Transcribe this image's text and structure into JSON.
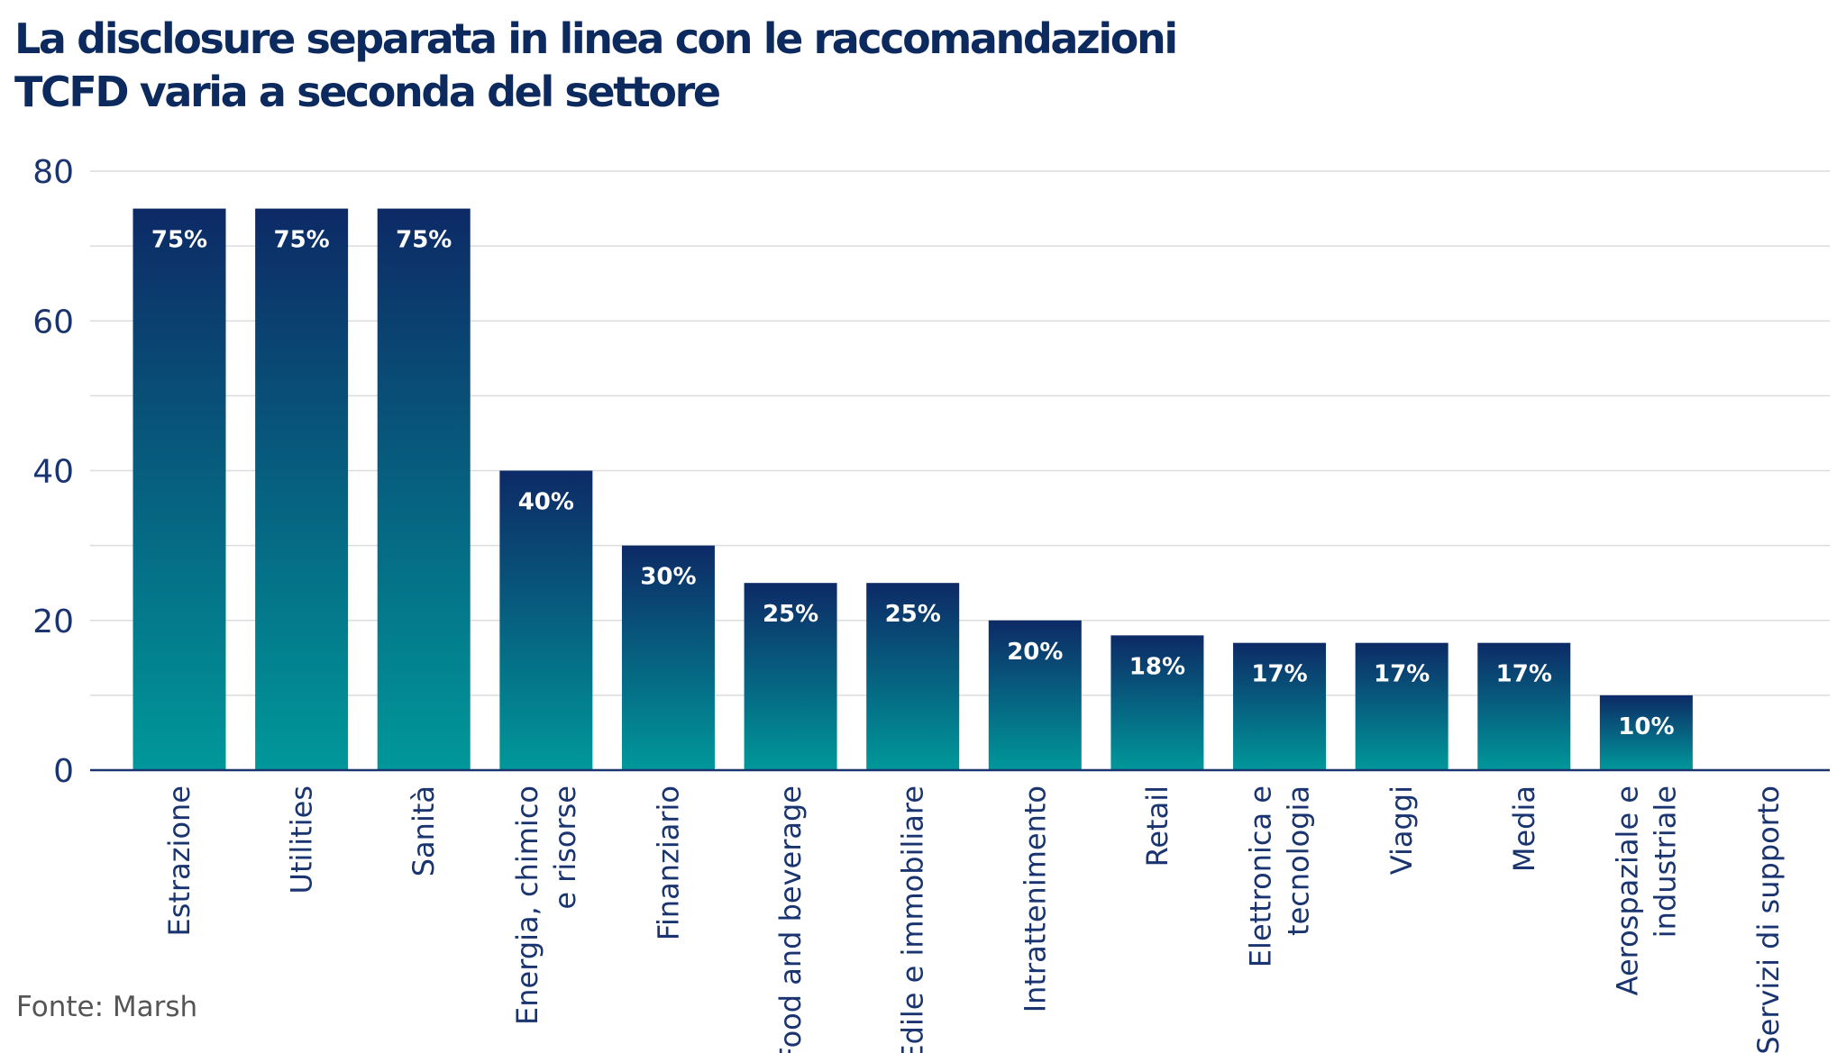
{
  "title_lines": [
    "La disclosure separata in linea con le raccomandazioni",
    "TCFD varia a seconda del settore"
  ],
  "source": "Fonte: Marsh",
  "colors": {
    "title": "#0d2a5e",
    "bar_top": "#0d2a66",
    "bar_bottom": "#00989a",
    "axis": "#1a3470",
    "grid": "#dcdcdc",
    "tick_text": "#1a3470",
    "value_label": "#ffffff"
  },
  "chart_data": {
    "type": "bar",
    "title": "La disclosure separata in linea con le raccomandazioni TCFD varia a seconda del settore",
    "xlabel": "",
    "ylabel": "",
    "ylim": [
      0,
      80
    ],
    "yticks": [
      0,
      20,
      40,
      60,
      80
    ],
    "grid": true,
    "categories": [
      [
        "Estrazione"
      ],
      [
        "Utilities"
      ],
      [
        "Sanità"
      ],
      [
        "Energia, chimico",
        "e risorse"
      ],
      [
        "Finanziario"
      ],
      [
        "Food and beverage"
      ],
      [
        "Edile e immobiliare"
      ],
      [
        "Intrattenimento"
      ],
      [
        "Retail"
      ],
      [
        "Elettronica e",
        "tecnologia"
      ],
      [
        "Viaggi"
      ],
      [
        "Media"
      ],
      [
        "Aerospaziale e",
        "industriale"
      ],
      [
        "Servizi di supporto"
      ]
    ],
    "values": [
      75,
      75,
      75,
      40,
      30,
      25,
      25,
      20,
      18,
      17,
      17,
      17,
      10,
      0
    ],
    "data_labels": [
      "75%",
      "75%",
      "75%",
      "40%",
      "30%",
      "25%",
      "25%",
      "20%",
      "18%",
      "17%",
      "17%",
      "17%",
      "10%",
      ""
    ]
  }
}
